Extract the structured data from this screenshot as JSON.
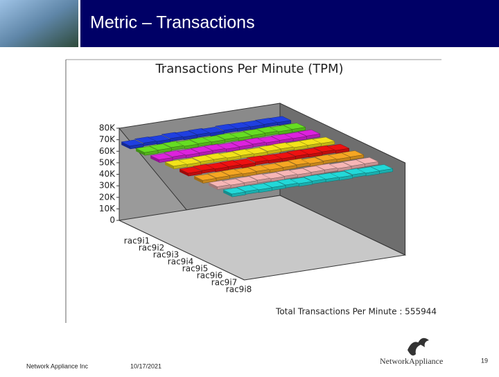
{
  "slide": {
    "title": "Metric – Transactions",
    "footer_left": "Network Appliance Inc",
    "date": "10/17/2021",
    "logo": "NetworkAppliance",
    "page_number": "19"
  },
  "chart_data": {
    "type": "ribbon3d",
    "title": "Transactions Per Minute (TPM)",
    "annotation": "Total Transactions Per Minute : 555944",
    "categories": [
      null,
      null,
      null,
      null,
      null,
      null,
      null,
      null,
      null,
      null,
      null,
      null
    ],
    "ylim": [
      0,
      80000
    ],
    "yticks": [
      {
        "value": 0,
        "label": "0"
      },
      {
        "value": 10000,
        "label": "10K"
      },
      {
        "value": 20000,
        "label": "20K"
      },
      {
        "value": 30000,
        "label": "30K"
      },
      {
        "value": 40000,
        "label": "40K"
      },
      {
        "value": 50000,
        "label": "50K"
      },
      {
        "value": 60000,
        "label": "60K"
      },
      {
        "value": 70000,
        "label": "70K"
      },
      {
        "value": 80000,
        "label": "80K"
      }
    ],
    "series": [
      {
        "name": "rac9i1",
        "color": "#1f3fe0",
        "values": [
          69000,
          69800,
          69400,
          70100,
          69600,
          69900,
          69300,
          70000,
          69700,
          69500,
          69800,
          69600
        ]
      },
      {
        "name": "rac9i2",
        "color": "#66dd22",
        "values": [
          69400,
          69700,
          70200,
          69500,
          69900,
          69600,
          70000,
          69400,
          69800,
          70100,
          69500,
          69700
        ]
      },
      {
        "name": "rac9i3",
        "color": "#dd22dd",
        "values": [
          69200,
          69900,
          69500,
          69800,
          70000,
          69400,
          69700,
          70100,
          69500,
          69800,
          69600,
          69900
        ]
      },
      {
        "name": "rac9i4",
        "color": "#f2e31a",
        "values": [
          69600,
          69300,
          69900,
          70000,
          69500,
          69800,
          69400,
          69900,
          70200,
          69600,
          69700,
          69500
        ]
      },
      {
        "name": "rac9i5",
        "color": "#ee1111",
        "values": [
          69500,
          70000,
          69600,
          69800,
          69300,
          70100,
          69700,
          69500,
          69900,
          69600,
          70000,
          69400
        ]
      },
      {
        "name": "rac9i6",
        "color": "#f5a623",
        "values": [
          69300,
          69700,
          70000,
          69600,
          69900,
          69500,
          69800,
          70200,
          69400,
          69900,
          69600,
          69800
        ]
      },
      {
        "name": "rac9i7",
        "color": "#f7b6b6",
        "values": [
          69800,
          69400,
          69700,
          70100,
          69600,
          69900,
          69500,
          69800,
          70000,
          69400,
          69700,
          69900
        ]
      },
      {
        "name": "rac9i8",
        "color": "#22d8d8",
        "values": [
          69500,
          69900,
          69600,
          69800,
          70100,
          69500,
          69900,
          69700,
          69400,
          70000,
          69600,
          69800
        ]
      }
    ]
  }
}
